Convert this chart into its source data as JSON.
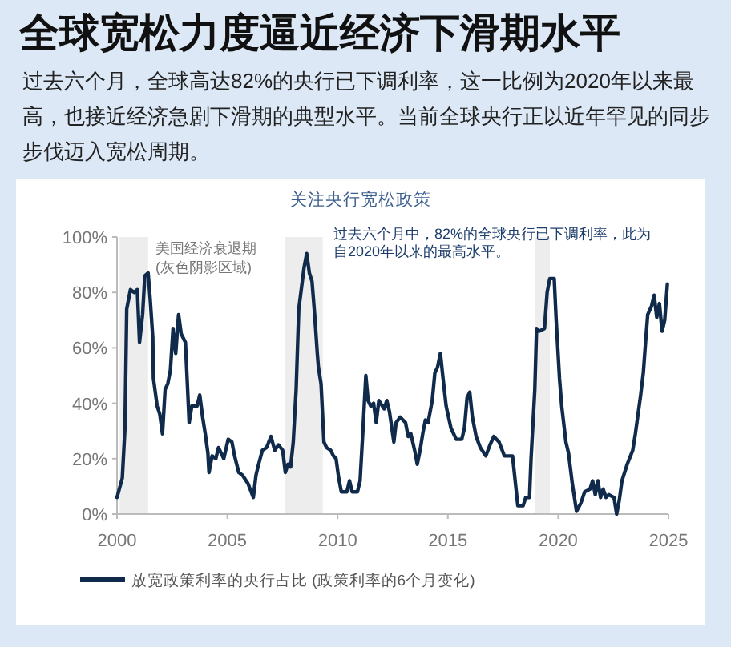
{
  "chart_data": {
    "type": "line",
    "title": "全球宽松力度逼近经济下滑期水平",
    "subtitle": "过去六个月，全球高达82%的央行已下调利率，这一比例为2020年以来最高，也接近经济急剧下滑期的典型水平。当前全球央行正以近年罕见的同步步伐迈入宽松周期。",
    "annotations": [
      "关注央行宽松政策",
      "美国经济衰退期 (灰色阴影区域)",
      "过去六个月中，82%的全球央行已下调利率，此为自2020年以来的最高水平。"
    ],
    "xlim": [
      2000,
      2025
    ],
    "xticks": [
      2000,
      2005,
      2010,
      2015,
      2020,
      2025
    ],
    "ylim": [
      0,
      100
    ],
    "yticks": [
      {
        "value": 0,
        "label": "0%"
      },
      {
        "value": 20,
        "label": "20%"
      },
      {
        "value": 40,
        "label": "40%"
      },
      {
        "value": 60,
        "label": "60%"
      },
      {
        "value": 80,
        "label": "80%"
      },
      {
        "value": 100,
        "label": "100%"
      }
    ],
    "grid": false,
    "legend": "bottom",
    "bands": [
      {
        "axis": "x",
        "from": 2000.12,
        "to": 2001.41,
        "color": "#ededed"
      },
      {
        "axis": "x",
        "from": 2007.63,
        "to": 2009.33,
        "color": "#ededed"
      },
      {
        "axis": "x",
        "from": 2018.96,
        "to": 2019.62,
        "color": "#ededed"
      }
    ],
    "series": [
      {
        "name": "放宽政策利率的央行占比 (政策利率的6个月变化)",
        "color": "#0f2a4a",
        "x": [
          2000.0,
          2000.24,
          2000.36,
          2000.44,
          2000.61,
          2000.78,
          2000.92,
          2001.02,
          2001.16,
          2001.26,
          2001.41,
          2001.5,
          2001.62,
          2001.65,
          2001.82,
          2001.94,
          2002.06,
          2002.18,
          2002.3,
          2002.42,
          2002.54,
          2002.66,
          2002.79,
          2002.91,
          2003.1,
          2003.2,
          2003.27,
          2003.39,
          2003.63,
          2003.75,
          2003.88,
          2004.0,
          2004.12,
          2004.17,
          2004.31,
          2004.48,
          2004.6,
          2004.84,
          2005.04,
          2005.21,
          2005.33,
          2005.52,
          2005.69,
          2005.94,
          2006.18,
          2006.3,
          2006.42,
          2006.59,
          2006.78,
          2006.98,
          2007.15,
          2007.32,
          2007.51,
          2007.63,
          2007.75,
          2007.87,
          2007.99,
          2008.12,
          2008.24,
          2008.48,
          2008.6,
          2008.72,
          2008.84,
          2008.96,
          2009.08,
          2009.13,
          2009.25,
          2009.38,
          2009.5,
          2009.69,
          2009.81,
          2009.93,
          2010.05,
          2010.17,
          2010.42,
          2010.54,
          2010.66,
          2010.9,
          2011.02,
          2011.14,
          2011.28,
          2011.38,
          2011.5,
          2011.63,
          2011.75,
          2011.87,
          2012.11,
          2012.23,
          2012.35,
          2012.55,
          2012.65,
          2012.84,
          2013.08,
          2013.2,
          2013.32,
          2013.52,
          2013.61,
          2013.74,
          2013.86,
          2013.98,
          2014.1,
          2014.29,
          2014.41,
          2014.53,
          2014.66,
          2014.78,
          2014.92,
          2015.14,
          2015.38,
          2015.63,
          2015.75,
          2015.87,
          2015.99,
          2016.11,
          2016.28,
          2016.47,
          2016.72,
          2016.91,
          2017.08,
          2017.32,
          2017.56,
          2017.93,
          2018.05,
          2018.17,
          2018.41,
          2018.53,
          2018.7,
          2018.77,
          2018.94,
          2019.02,
          2019.14,
          2019.38,
          2019.5,
          2019.62,
          2019.82,
          2019.91,
          2020.06,
          2020.16,
          2020.35,
          2020.47,
          2020.64,
          2020.83,
          2021.03,
          2021.2,
          2021.44,
          2021.56,
          2021.68,
          2021.8,
          2021.92,
          2022.04,
          2022.17,
          2022.29,
          2022.53,
          2022.65,
          2022.77,
          2022.89,
          2023.13,
          2023.38,
          2023.5,
          2023.74,
          2023.86,
          2023.98,
          2024.06,
          2024.23,
          2024.35,
          2024.47,
          2024.59,
          2024.71,
          2024.83,
          2024.95
        ],
        "values": [
          6,
          13,
          31,
          74,
          81,
          80,
          81,
          62,
          72,
          86,
          87,
          78,
          64,
          49,
          39,
          36,
          29,
          45,
          47,
          52,
          67,
          58,
          72,
          65,
          62,
          45,
          33,
          39,
          39,
          43,
          35,
          29,
          22,
          15,
          21,
          20,
          24,
          20,
          27,
          26,
          21,
          15,
          14,
          11,
          6,
          14,
          18,
          23,
          24,
          28,
          23,
          25,
          23,
          15,
          18,
          17,
          26,
          45,
          74,
          89,
          94,
          87,
          84,
          72,
          58,
          53,
          47,
          26,
          24,
          23,
          21,
          20,
          13,
          8,
          8,
          12,
          8,
          8,
          12,
          29,
          50,
          41,
          39,
          40,
          33,
          41,
          38,
          41,
          37,
          26,
          33,
          35,
          33,
          28,
          29,
          22,
          18,
          23,
          29,
          34,
          33,
          41,
          51,
          53,
          58,
          49,
          39,
          31,
          27,
          27,
          31,
          42,
          44,
          35,
          28,
          24,
          21,
          25,
          28,
          26,
          21,
          21,
          12,
          3,
          3,
          6,
          6,
          20,
          45,
          67,
          66,
          67,
          80,
          85,
          85,
          70,
          49,
          39,
          26,
          22,
          11,
          1,
          4,
          8,
          9,
          12,
          7,
          12,
          6,
          9,
          6,
          7,
          6,
          0,
          5,
          12,
          18,
          23,
          29,
          43,
          51,
          64,
          72,
          75,
          79,
          71,
          76,
          66,
          70,
          83
        ]
      }
    ]
  }
}
